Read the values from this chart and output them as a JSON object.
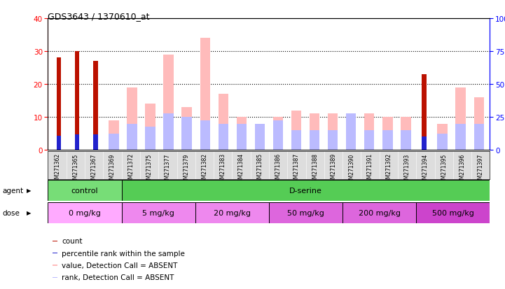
{
  "title": "GDS3643 / 1370610_at",
  "samples": [
    "GSM271362",
    "GSM271365",
    "GSM271367",
    "GSM271369",
    "GSM271372",
    "GSM271375",
    "GSM271377",
    "GSM271379",
    "GSM271382",
    "GSM271383",
    "GSM271384",
    "GSM271385",
    "GSM271386",
    "GSM271387",
    "GSM271388",
    "GSM271389",
    "GSM271390",
    "GSM271391",
    "GSM271392",
    "GSM271393",
    "GSM271394",
    "GSM271395",
    "GSM271396",
    "GSM271397"
  ],
  "count": [
    28,
    30,
    27,
    0,
    0,
    0,
    0,
    0,
    0,
    0,
    0,
    0,
    0,
    0,
    0,
    0,
    0,
    0,
    0,
    0,
    23,
    0,
    0,
    0
  ],
  "percentile_rank": [
    11,
    12,
    12,
    0,
    0,
    0,
    0,
    0,
    0,
    0,
    0,
    0,
    0,
    0,
    0,
    0,
    0,
    0,
    0,
    0,
    10,
    0,
    0,
    0
  ],
  "value_absent": [
    0,
    0,
    0,
    9,
    19,
    14,
    29,
    13,
    34,
    17,
    10,
    8,
    10,
    12,
    11,
    11,
    11,
    11,
    10,
    10,
    0,
    8,
    19,
    16
  ],
  "rank_absent": [
    0,
    0,
    0,
    5,
    8,
    7,
    11,
    10,
    9,
    8,
    8,
    8,
    9,
    6,
    6,
    6,
    11,
    6,
    6,
    6,
    0,
    5,
    8,
    8
  ],
  "agent_groups": [
    {
      "label": "control",
      "start": 0,
      "end": 3,
      "color": "#77dd77"
    },
    {
      "label": "D-serine",
      "start": 4,
      "end": 23,
      "color": "#55cc55"
    }
  ],
  "dose_groups": [
    {
      "label": "0 mg/kg",
      "start": 0,
      "end": 3,
      "color": "#ffaaff"
    },
    {
      "label": "5 mg/kg",
      "start": 4,
      "end": 7,
      "color": "#ee88ee"
    },
    {
      "label": "20 mg/kg",
      "start": 8,
      "end": 11,
      "color": "#ee88ee"
    },
    {
      "label": "50 mg/kg",
      "start": 12,
      "end": 15,
      "color": "#dd66dd"
    },
    {
      "label": "200 mg/kg",
      "start": 16,
      "end": 19,
      "color": "#dd66dd"
    },
    {
      "label": "500 mg/kg",
      "start": 20,
      "end": 23,
      "color": "#cc44cc"
    }
  ],
  "ylim_left": [
    0,
    40
  ],
  "ylim_right": [
    0,
    100
  ],
  "yticks_left": [
    0,
    10,
    20,
    30,
    40
  ],
  "yticks_right": [
    0,
    25,
    50,
    75,
    100
  ],
  "color_count": "#bb1100",
  "color_percentile": "#2222cc",
  "color_value_absent": "#ffbbbb",
  "color_rank_absent": "#bbbbff",
  "bg_xtick": "#dddddd"
}
